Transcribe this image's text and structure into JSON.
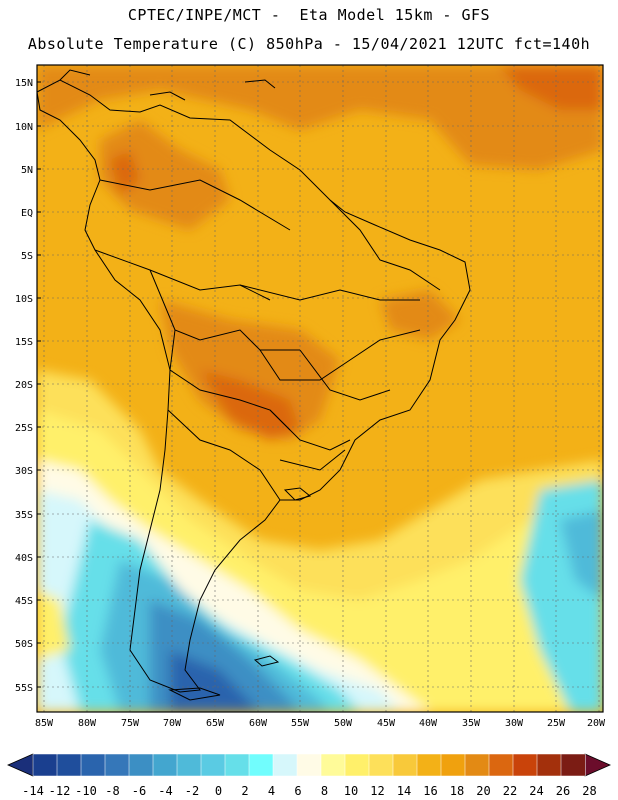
{
  "title": {
    "line1": "CPTEC/INPE/MCT -  Eta Model 15km - GFS",
    "line2": "Absolute Temperature (C) 850hPa - 15/04/2021 12UTC fct=140h"
  },
  "map": {
    "lat_labels": [
      "15N",
      "10N",
      "5N",
      "EQ",
      "5S",
      "10S",
      "15S",
      "20S",
      "25S",
      "30S",
      "35S",
      "40S",
      "45S",
      "50S",
      "55S"
    ],
    "lon_labels": [
      "85W",
      "80W",
      "75W",
      "70W",
      "65W",
      "60W",
      "55W",
      "50W",
      "45W",
      "40W",
      "35W",
      "30W",
      "25W",
      "20W"
    ],
    "colors": {
      "frame": "#000000",
      "grid": "#666666",
      "land_border": "#000000"
    },
    "description_regions": [
      "tropics-warm",
      "subtropics",
      "patagonia-cold",
      "south-atlantic-cold"
    ]
  },
  "colorbar": {
    "labels": [
      "-14",
      "-12",
      "-10",
      "-8",
      "-6",
      "-4",
      "-2",
      "0",
      "2",
      "4",
      "6",
      "8",
      "10",
      "12",
      "14",
      "16",
      "18",
      "20",
      "22",
      "24",
      "26",
      "28"
    ],
    "colors": [
      "#1a3f8f",
      "#1f4e9c",
      "#2a64ad",
      "#3577b9",
      "#3c8fc4",
      "#43a6cf",
      "#4fbad9",
      "#5acbe3",
      "#66dfe9",
      "#71fdfd",
      "#d6f7fb",
      "#fffbe6",
      "#fffb99",
      "#fff06a",
      "#fde05a",
      "#f8c93a",
      "#f3b117",
      "#f0a10e",
      "#e38a14",
      "#db6710",
      "#c9430a",
      "#a3300c",
      "#7b1c14"
    ],
    "left_arrow": "#1a2f7a",
    "right_arrow": "#6b0d2b"
  }
}
